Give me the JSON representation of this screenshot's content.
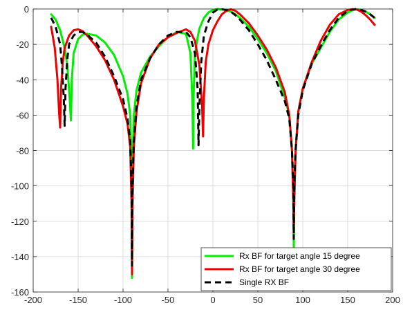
{
  "chart_data": {
    "type": "line",
    "title": "",
    "xlabel": "",
    "ylabel": "",
    "xlim": [
      -200,
      200
    ],
    "ylim": [
      -160,
      0
    ],
    "grid": true,
    "legend_position": "bottom-right",
    "x_ticks": [
      -200,
      -150,
      -100,
      -50,
      0,
      50,
      100,
      150,
      200
    ],
    "y_ticks": [
      0,
      -20,
      -40,
      -60,
      -80,
      -100,
      -120,
      -140,
      -160
    ],
    "series": [
      {
        "name": "Rx BF for target angle 15 degree",
        "color": "#00ee00",
        "style": "solid",
        "x": [
          -180,
          -175,
          -170,
          -165,
          -162,
          -159.5,
          -158,
          -157,
          -155,
          -150,
          -145,
          -140,
          -130,
          -120,
          -110,
          -100,
          -95,
          -92,
          -90.5,
          -90,
          -89.5,
          -88,
          -85,
          -80,
          -70,
          -60,
          -50,
          -40,
          -30,
          -25,
          -23,
          -22,
          -21.5,
          -20,
          -17,
          -15,
          -10,
          -5,
          0,
          5,
          10,
          15,
          20,
          25,
          30,
          40,
          50,
          60,
          70,
          80,
          85,
          88,
          89.5,
          90,
          90.5,
          92,
          95,
          100,
          110,
          120,
          130,
          140,
          150,
          155,
          160,
          165,
          170,
          175,
          180
        ],
        "y": [
          -3,
          -6,
          -12,
          -22,
          -32,
          -50,
          -63,
          -40,
          -25,
          -17,
          -14.5,
          -14,
          -15,
          -19,
          -26,
          -38,
          -48,
          -60,
          -90,
          -152,
          -90,
          -60,
          -46,
          -36,
          -27,
          -21,
          -16,
          -13,
          -14,
          -25,
          -50,
          -79,
          -50,
          -26,
          -16,
          -11,
          -5,
          -2,
          -0.5,
          0,
          -0.3,
          -0.7,
          -1.5,
          -3,
          -5,
          -10,
          -17,
          -25,
          -35,
          -50,
          -60,
          -80,
          -110,
          -135,
          -110,
          -80,
          -58,
          -45,
          -31,
          -22,
          -13,
          -6,
          -2,
          -0.8,
          -0.1,
          -0.5,
          -1.5,
          -3,
          -5
        ]
      },
      {
        "name": "Rx BF for target angle 30 degree",
        "color": "#ee0000",
        "style": "solid",
        "x": [
          -180,
          -176,
          -173,
          -171,
          -170,
          -169,
          -167,
          -165,
          -160,
          -155,
          -150,
          -145,
          -140,
          -130,
          -120,
          -110,
          -100,
          -95,
          -92,
          -90.5,
          -90,
          -89.5,
          -88,
          -85,
          -80,
          -70,
          -60,
          -50,
          -40,
          -30,
          -25,
          -20,
          -15,
          -12,
          -11,
          -10,
          -8,
          -5,
          0,
          5,
          10,
          15,
          20,
          25,
          30,
          40,
          50,
          60,
          70,
          80,
          85,
          88,
          89.5,
          90,
          90.5,
          92,
          95,
          100,
          110,
          120,
          130,
          140,
          150,
          155,
          160,
          165,
          170,
          175,
          180
        ],
        "y": [
          -10,
          -22,
          -40,
          -60,
          -67,
          -45,
          -30,
          -22,
          -15,
          -12,
          -11.5,
          -12.5,
          -15,
          -21,
          -29,
          -40,
          -55,
          -65,
          -78,
          -110,
          -150,
          -110,
          -78,
          -58,
          -42,
          -28,
          -20,
          -16,
          -13.5,
          -11.5,
          -13,
          -18,
          -32,
          -55,
          -72,
          -50,
          -30,
          -20,
          -12,
          -7,
          -3,
          -1,
          -0.1,
          -1,
          -3,
          -8,
          -15,
          -23,
          -33,
          -47,
          -60,
          -80,
          -110,
          -125,
          -110,
          -80,
          -58,
          -45,
          -30,
          -18,
          -9,
          -3,
          -0.5,
          -0.1,
          -0.3,
          -1.5,
          -3.5,
          -6,
          -9
        ]
      },
      {
        "name": "Single RX BF",
        "color": "#000000",
        "style": "dashed",
        "x": [
          -180,
          -175,
          -170,
          -168,
          -166,
          -165,
          -164,
          -162,
          -160,
          -155,
          -150,
          -145,
          -140,
          -130,
          -120,
          -110,
          -100,
          -95,
          -92,
          -90.5,
          -90,
          -89.5,
          -88,
          -85,
          -80,
          -70,
          -60,
          -50,
          -40,
          -30,
          -25,
          -20,
          -17,
          -16,
          -15,
          -13,
          -10,
          -5,
          0,
          5,
          10,
          15,
          20,
          25,
          30,
          40,
          50,
          60,
          70,
          80,
          85,
          88,
          89.5,
          90,
          90.5,
          92,
          95,
          100,
          110,
          120,
          130,
          140,
          150,
          155,
          160,
          165,
          170,
          175,
          180
        ],
        "y": [
          -5,
          -10,
          -20,
          -32,
          -50,
          -66,
          -45,
          -28,
          -20,
          -15,
          -13,
          -13,
          -14.5,
          -19,
          -27,
          -38,
          -51,
          -62,
          -75,
          -100,
          -145,
          -100,
          -75,
          -55,
          -40,
          -28,
          -20,
          -15,
          -13,
          -13,
          -16,
          -25,
          -45,
          -77,
          -55,
          -30,
          -15,
          -7,
          -2,
          -0.3,
          -0.1,
          -0.5,
          -1.5,
          -3.5,
          -6,
          -12,
          -20,
          -29,
          -40,
          -52,
          -62,
          -80,
          -100,
          -130,
          -100,
          -80,
          -60,
          -46,
          -31,
          -21,
          -12,
          -5,
          -1,
          -0.3,
          0,
          -0.5,
          -1.5,
          -3,
          -5
        ]
      }
    ]
  }
}
